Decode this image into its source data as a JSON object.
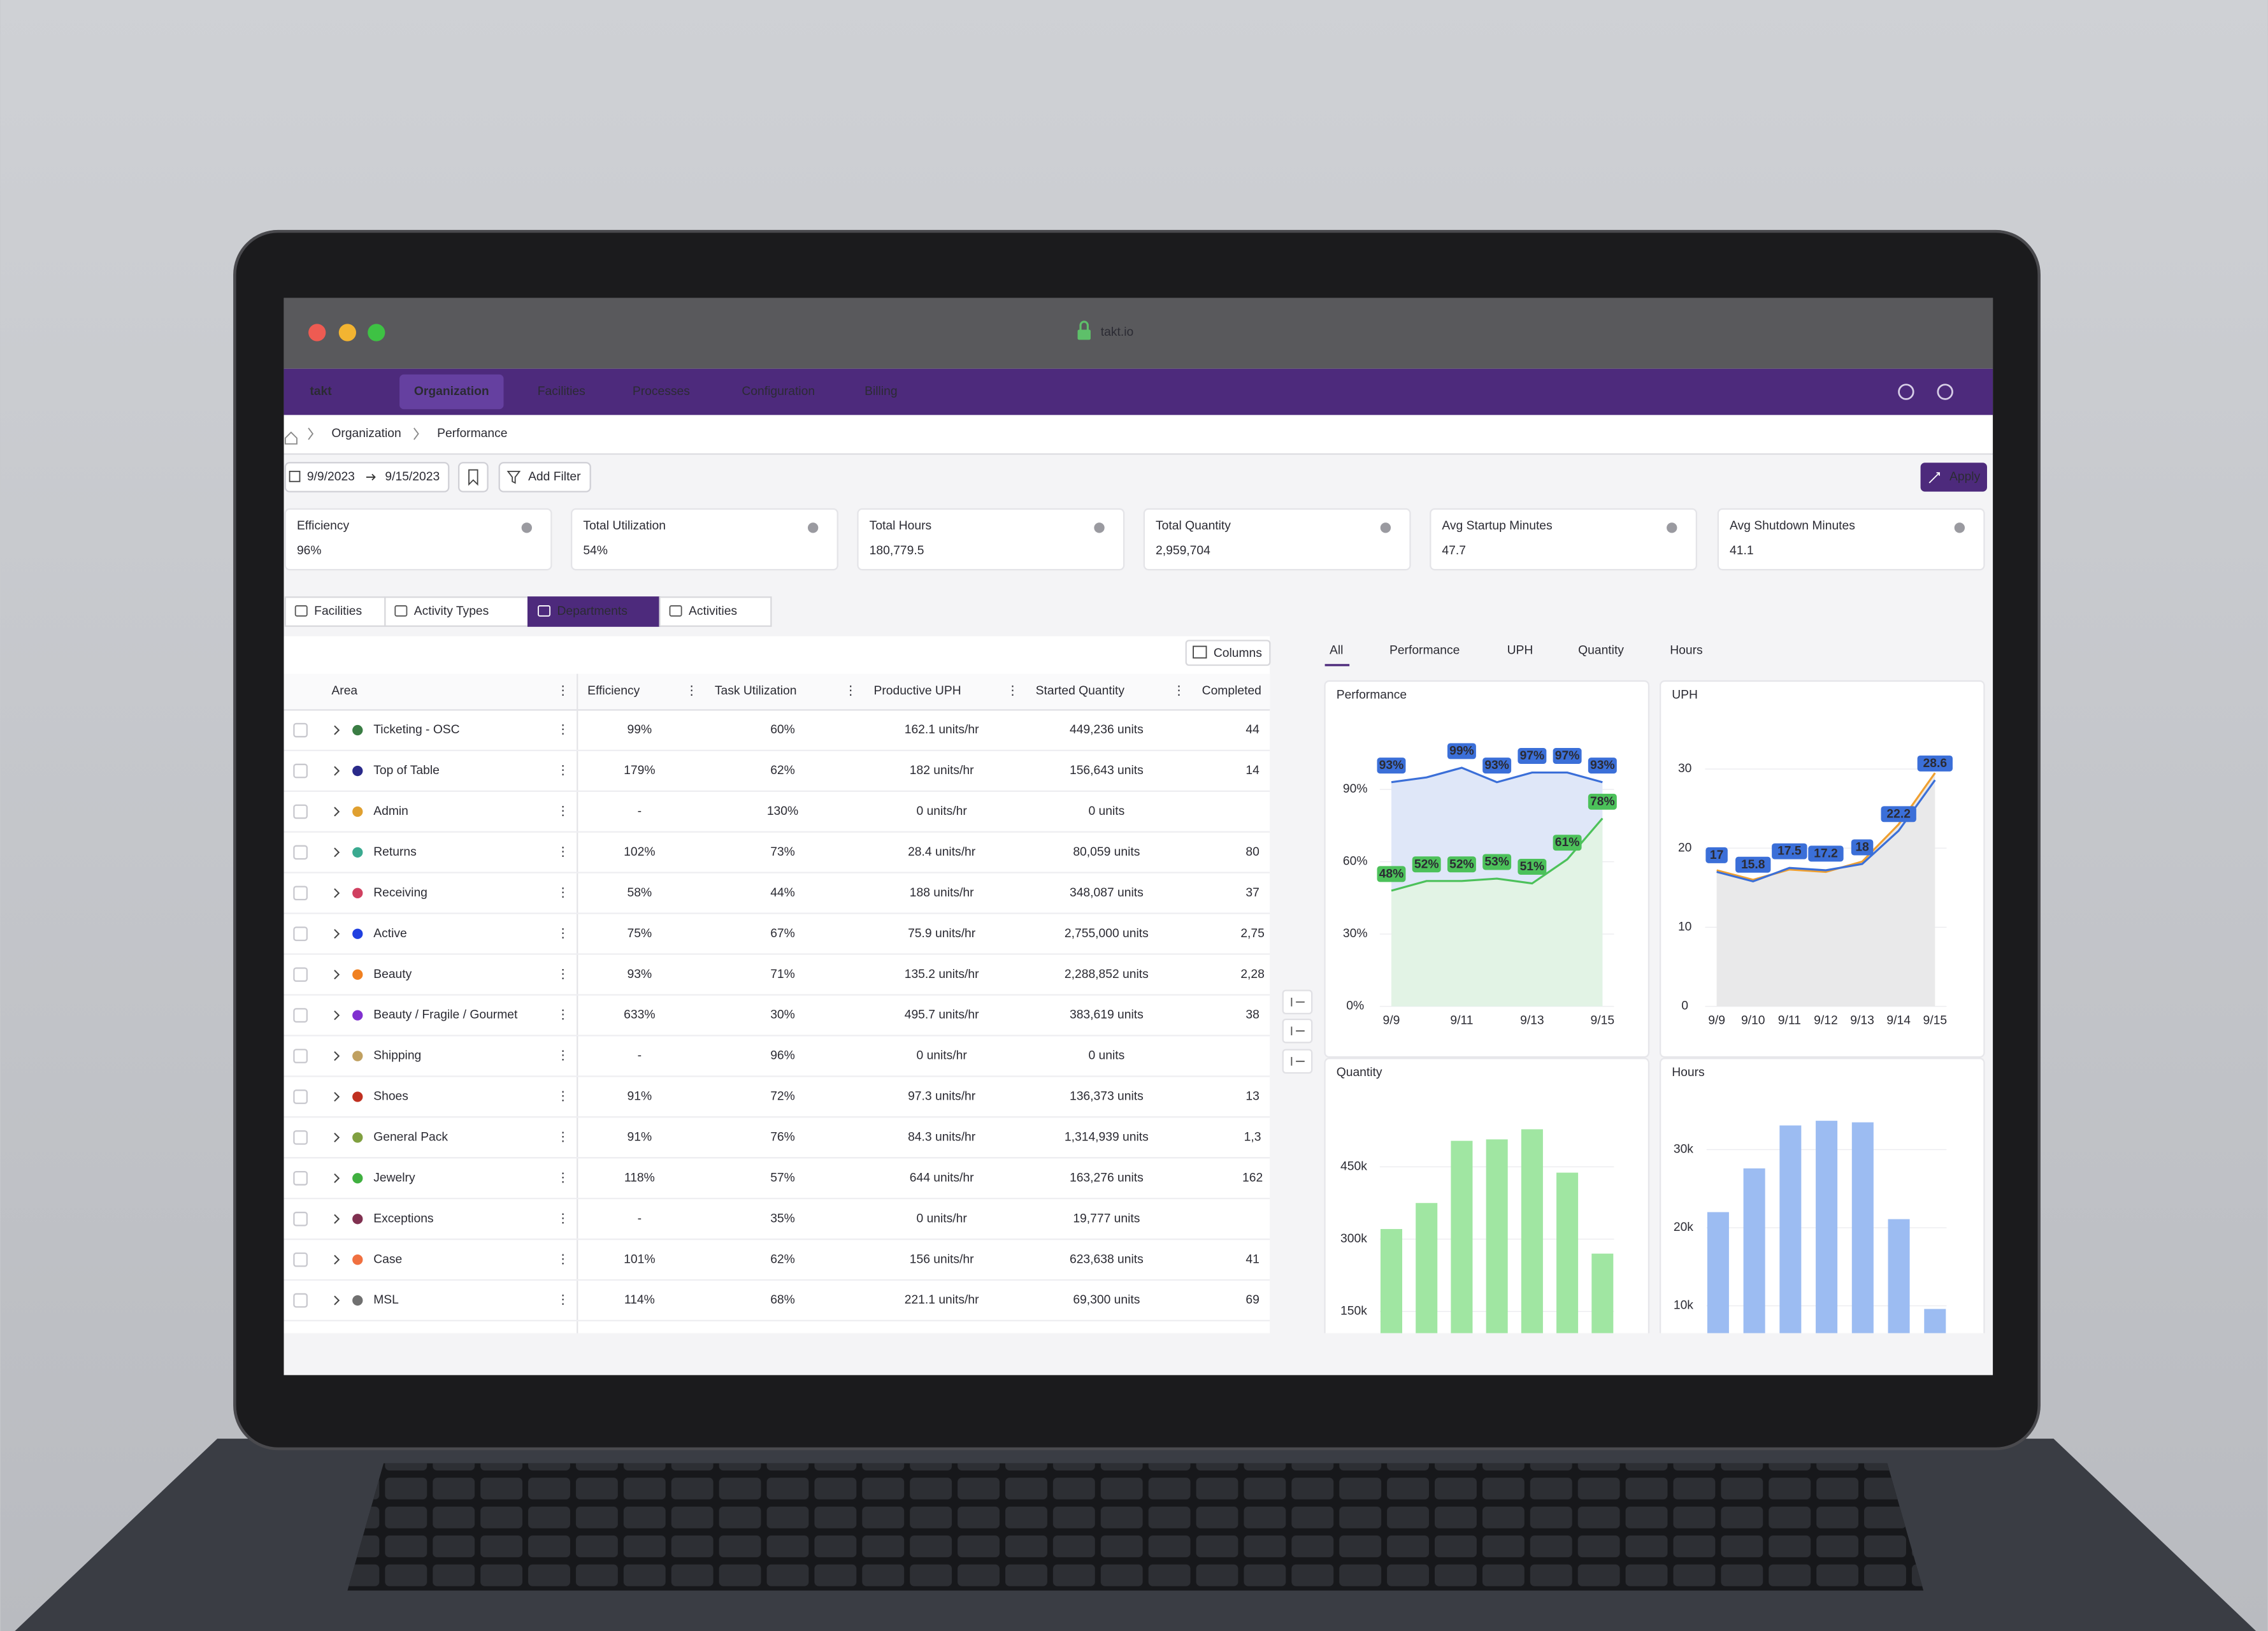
{
  "browser": {
    "url": "takt.io"
  },
  "nav": {
    "logo": "takt",
    "items": [
      "Organization",
      "Facilities",
      "Processes",
      "Configuration",
      "Billing"
    ]
  },
  "breadcrumb": [
    "Organization",
    "Performance"
  ],
  "filters": {
    "date_start": "9/9/2023",
    "date_end": "9/15/2023",
    "add_filter": "Add Filter",
    "apply": "Apply"
  },
  "kpis": [
    {
      "label": "Efficiency",
      "value": "96%"
    },
    {
      "label": "Total Utilization",
      "value": "54%"
    },
    {
      "label": "Total Hours",
      "value": "180,779.5"
    },
    {
      "label": "Total Quantity",
      "value": "2,959,704"
    },
    {
      "label": "Avg Startup Minutes",
      "value": "47.7"
    },
    {
      "label": "Avg Shutdown Minutes",
      "value": "41.1"
    }
  ],
  "view_tabs": [
    "Facilities",
    "Activity Types",
    "Departments",
    "Activities"
  ],
  "table": {
    "columns_button": "Columns",
    "columns": [
      "Area",
      "Efficiency",
      "Task Utilization",
      "Productive UPH",
      "Started Quantity",
      "Completed"
    ],
    "rows": [
      {
        "name": "Ticketing - OSC",
        "color": "#3a7d44",
        "efficiency": "99%",
        "task_utilization": "60%",
        "productive_uph": "162.1 units/hr",
        "started_quantity": "449,236 units",
        "completed": "44"
      },
      {
        "name": "Top of Table",
        "color": "#2a2a8a",
        "efficiency": "179%",
        "task_utilization": "62%",
        "productive_uph": "182 units/hr",
        "started_quantity": "156,643 units",
        "completed": "14"
      },
      {
        "name": "Admin",
        "color": "#e0a030",
        "efficiency": "-",
        "task_utilization": "130%",
        "productive_uph": "0 units/hr",
        "started_quantity": "0 units",
        "completed": null
      },
      {
        "name": "Returns",
        "color": "#3aaa90",
        "efficiency": "102%",
        "task_utilization": "73%",
        "productive_uph": "28.4 units/hr",
        "started_quantity": "80,059 units",
        "completed": "80"
      },
      {
        "name": "Receiving",
        "color": "#d04060",
        "efficiency": "58%",
        "task_utilization": "44%",
        "productive_uph": "188 units/hr",
        "started_quantity": "348,087 units",
        "completed": "37"
      },
      {
        "name": "Active",
        "color": "#2040e0",
        "efficiency": "75%",
        "task_utilization": "67%",
        "productive_uph": "75.9 units/hr",
        "started_quantity": "2,755,000 units",
        "completed": "2,75"
      },
      {
        "name": "Beauty",
        "color": "#f08020",
        "efficiency": "93%",
        "task_utilization": "71%",
        "productive_uph": "135.2 units/hr",
        "started_quantity": "2,288,852 units",
        "completed": "2,28"
      },
      {
        "name": "Beauty / Fragile / Gourmet",
        "color": "#8030d0",
        "efficiency": "633%",
        "task_utilization": "30%",
        "productive_uph": "495.7 units/hr",
        "started_quantity": "383,619 units",
        "completed": "38"
      },
      {
        "name": "Shipping",
        "color": "#c0a060",
        "efficiency": "-",
        "task_utilization": "96%",
        "productive_uph": "0 units/hr",
        "started_quantity": "0 units",
        "completed": null
      },
      {
        "name": "Shoes",
        "color": "#c03020",
        "efficiency": "91%",
        "task_utilization": "72%",
        "productive_uph": "97.3 units/hr",
        "started_quantity": "136,373 units",
        "completed": "13"
      },
      {
        "name": "General Pack",
        "color": "#80a040",
        "efficiency": "91%",
        "task_utilization": "76%",
        "productive_uph": "84.3 units/hr",
        "started_quantity": "1,314,939 units",
        "completed": "1,3"
      },
      {
        "name": "Jewelry",
        "color": "#40b040",
        "efficiency": "118%",
        "task_utilization": "57%",
        "productive_uph": "644 units/hr",
        "started_quantity": "163,276 units",
        "completed": "162"
      },
      {
        "name": "Exceptions",
        "color": "#803050",
        "efficiency": "-",
        "task_utilization": "35%",
        "productive_uph": "0 units/hr",
        "started_quantity": "19,777 units",
        "completed": null
      },
      {
        "name": "Case",
        "color": "#f07040",
        "efficiency": "101%",
        "task_utilization": "62%",
        "productive_uph": "156 units/hr",
        "started_quantity": "623,638 units",
        "completed": "41"
      },
      {
        "name": "MSL",
        "color": "#707070",
        "efficiency": "114%",
        "task_utilization": "68%",
        "productive_uph": "221.1 units/hr",
        "started_quantity": "69,300 units",
        "completed": "69"
      }
    ]
  },
  "chart_tabs": [
    "All",
    "Performance",
    "UPH",
    "Quantity",
    "Hours"
  ],
  "chart_data": [
    {
      "type": "line",
      "title": "Performance",
      "categories": [
        "9/9",
        null,
        "9/11",
        null,
        "9/13",
        null,
        "9/15"
      ],
      "ylim": [
        0,
        100
      ],
      "yticks": [
        {
          "value": 0,
          "label": "0%"
        },
        {
          "value": 30,
          "label": "30%"
        },
        {
          "value": 60,
          "label": "60%"
        },
        {
          "value": 90,
          "label": "90%"
        }
      ],
      "series": [
        {
          "color": "#3b6fd8",
          "fill": "#dfe7f8",
          "values": [
            93,
            95,
            99,
            93,
            97,
            97,
            93
          ],
          "value_labels": [
            "93%",
            null,
            "99%",
            "93%",
            "97%",
            "97%",
            "93%"
          ]
        },
        {
          "color": "#4cc15a",
          "fill": "#e2f3e5",
          "values": [
            48,
            52,
            52,
            53,
            51,
            61,
            78
          ],
          "value_labels": [
            "48%",
            "52%",
            "52%",
            "53%",
            "51%",
            "61%",
            "78%"
          ]
        }
      ]
    },
    {
      "type": "line",
      "title": "UPH",
      "categories": [
        "9/9",
        "9/10",
        "9/11",
        "9/12",
        "9/13",
        "9/14",
        "9/15"
      ],
      "ylim": [
        0,
        35
      ],
      "yticks": [
        0,
        10,
        20,
        30
      ],
      "series": [
        {
          "color": "#f0a030",
          "fill": "#e9e9ea",
          "values": [
            17.2,
            16,
            17.3,
            17,
            18.3,
            23,
            29.5
          ]
        },
        {
          "color": "#3b6fd8",
          "values": [
            17,
            15.8,
            17.5,
            17.2,
            18,
            22.2,
            28.6
          ],
          "labeled": true
        }
      ]
    },
    {
      "type": "bar",
      "title": "Quantity",
      "ylim": [
        105000,
        540000
      ],
      "yticks": [
        {
          "value": 150000,
          "label": "150k"
        },
        {
          "value": 300000,
          "label": "300k"
        },
        {
          "value": 450000,
          "label": "450k"
        }
      ],
      "color": "#a0e6a2",
      "values": [
        321000,
        375000,
        504000,
        507000,
        528000,
        438000,
        270000
      ]
    },
    {
      "type": "bar",
      "title": "Hours",
      "ylim": [
        6500,
        35500
      ],
      "yticks": [
        {
          "value": 10000,
          "label": "10k"
        },
        {
          "value": 20000,
          "label": "20k"
        },
        {
          "value": 30000,
          "label": "30k"
        }
      ],
      "color": "#9cbcf2",
      "values": [
        22000,
        27600,
        33100,
        33700,
        33500,
        21100,
        9600
      ]
    }
  ]
}
